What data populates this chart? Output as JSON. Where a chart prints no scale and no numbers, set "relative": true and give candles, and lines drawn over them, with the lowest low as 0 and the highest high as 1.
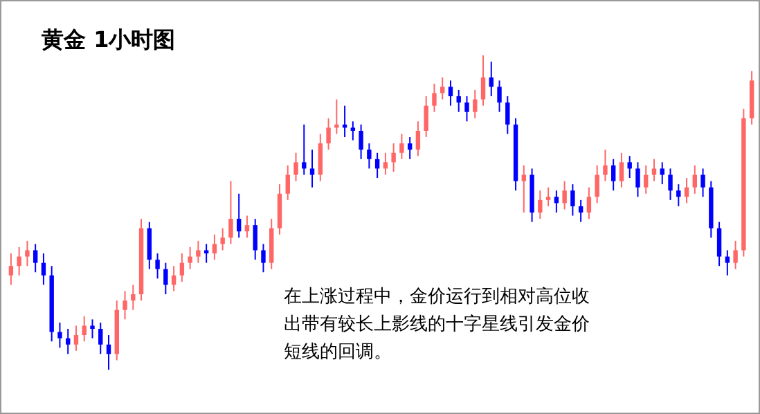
{
  "chart_data": {
    "type": "candlestick",
    "title": "黄金 1小时图",
    "relative": true,
    "annotations": [
      "在上涨过程中，金价运行到相对高位收",
      "出带有较长上影线的十字星线引发金价",
      "短线的回调。"
    ],
    "categories": [
      null,
      null,
      null,
      null,
      null,
      null,
      null,
      null,
      null,
      null,
      null,
      null,
      null,
      null,
      null,
      null,
      null,
      null,
      null,
      null,
      null,
      null,
      null,
      null,
      null,
      null,
      null,
      null,
      null,
      null,
      null,
      null,
      null,
      null,
      null,
      null,
      null,
      null,
      null,
      null,
      null,
      null,
      null,
      null,
      null,
      null,
      null,
      null,
      null,
      null,
      null,
      null,
      null,
      null,
      null,
      null,
      null,
      null,
      null,
      null,
      null,
      null,
      null,
      null,
      null,
      null,
      null,
      null,
      null,
      null,
      null,
      null,
      null,
      null,
      null,
      null,
      null,
      null,
      null,
      null,
      null,
      null,
      null,
      null,
      null,
      null,
      null,
      null,
      null,
      null,
      null,
      null
    ],
    "ohlc": [
      [
        0.3,
        0.37,
        0.27,
        0.33
      ],
      [
        0.33,
        0.39,
        0.3,
        0.36
      ],
      [
        0.36,
        0.41,
        0.33,
        0.38
      ],
      [
        0.38,
        0.4,
        0.31,
        0.34
      ],
      [
        0.34,
        0.37,
        0.27,
        0.3
      ],
      [
        0.3,
        0.33,
        0.09,
        0.12
      ],
      [
        0.12,
        0.15,
        0.07,
        0.1
      ],
      [
        0.1,
        0.13,
        0.05,
        0.08
      ],
      [
        0.08,
        0.14,
        0.06,
        0.11
      ],
      [
        0.11,
        0.17,
        0.09,
        0.14
      ],
      [
        0.14,
        0.16,
        0.1,
        0.13
      ],
      [
        0.13,
        0.15,
        0.05,
        0.08
      ],
      [
        0.08,
        0.11,
        0.0,
        0.05
      ],
      [
        0.05,
        0.22,
        0.03,
        0.19
      ],
      [
        0.19,
        0.25,
        0.16,
        0.22
      ],
      [
        0.22,
        0.27,
        0.19,
        0.24
      ],
      [
        0.24,
        0.48,
        0.22,
        0.45
      ],
      [
        0.45,
        0.47,
        0.32,
        0.35
      ],
      [
        0.35,
        0.37,
        0.29,
        0.32
      ],
      [
        0.32,
        0.34,
        0.24,
        0.27
      ],
      [
        0.27,
        0.33,
        0.25,
        0.3
      ],
      [
        0.3,
        0.37,
        0.28,
        0.34
      ],
      [
        0.34,
        0.39,
        0.32,
        0.36
      ],
      [
        0.36,
        0.41,
        0.34,
        0.38
      ],
      [
        0.38,
        0.4,
        0.34,
        0.37
      ],
      [
        0.37,
        0.43,
        0.35,
        0.4
      ],
      [
        0.4,
        0.45,
        0.38,
        0.42
      ],
      [
        0.42,
        0.6,
        0.4,
        0.48
      ],
      [
        0.48,
        0.56,
        0.42,
        0.44
      ],
      [
        0.44,
        0.49,
        0.42,
        0.46
      ],
      [
        0.46,
        0.48,
        0.35,
        0.38
      ],
      [
        0.38,
        0.4,
        0.31,
        0.34
      ],
      [
        0.34,
        0.48,
        0.32,
        0.45
      ],
      [
        0.45,
        0.59,
        0.43,
        0.56
      ],
      [
        0.56,
        0.65,
        0.54,
        0.62
      ],
      [
        0.62,
        0.69,
        0.6,
        0.66
      ],
      [
        0.66,
        0.78,
        0.62,
        0.64
      ],
      [
        0.64,
        0.7,
        0.58,
        0.62
      ],
      [
        0.62,
        0.75,
        0.6,
        0.72
      ],
      [
        0.72,
        0.8,
        0.7,
        0.77
      ],
      [
        0.77,
        0.86,
        0.75,
        0.78
      ],
      [
        0.78,
        0.84,
        0.74,
        0.77
      ],
      [
        0.77,
        0.79,
        0.73,
        0.76
      ],
      [
        0.76,
        0.78,
        0.67,
        0.7
      ],
      [
        0.7,
        0.72,
        0.64,
        0.67
      ],
      [
        0.67,
        0.69,
        0.61,
        0.64
      ],
      [
        0.64,
        0.69,
        0.62,
        0.66
      ],
      [
        0.66,
        0.72,
        0.63,
        0.69
      ],
      [
        0.69,
        0.75,
        0.67,
        0.72
      ],
      [
        0.72,
        0.74,
        0.67,
        0.7
      ],
      [
        0.7,
        0.79,
        0.68,
        0.76
      ],
      [
        0.76,
        0.87,
        0.74,
        0.84
      ],
      [
        0.84,
        0.91,
        0.82,
        0.88
      ],
      [
        0.88,
        0.93,
        0.86,
        0.9
      ],
      [
        0.9,
        0.92,
        0.84,
        0.87
      ],
      [
        0.87,
        0.89,
        0.82,
        0.85
      ],
      [
        0.85,
        0.87,
        0.79,
        0.82
      ],
      [
        0.82,
        0.89,
        0.8,
        0.86
      ],
      [
        0.86,
        1.0,
        0.84,
        0.93
      ],
      [
        0.93,
        0.98,
        0.87,
        0.9
      ],
      [
        0.9,
        0.92,
        0.82,
        0.85
      ],
      [
        0.85,
        0.87,
        0.75,
        0.78
      ],
      [
        0.78,
        0.8,
        0.57,
        0.6
      ],
      [
        0.6,
        0.65,
        0.5,
        0.62
      ],
      [
        0.62,
        0.64,
        0.47,
        0.5
      ],
      [
        0.5,
        0.57,
        0.48,
        0.54
      ],
      [
        0.54,
        0.58,
        0.52,
        0.55
      ],
      [
        0.55,
        0.57,
        0.5,
        0.53
      ],
      [
        0.53,
        0.6,
        0.51,
        0.57
      ],
      [
        0.57,
        0.59,
        0.49,
        0.52
      ],
      [
        0.52,
        0.54,
        0.47,
        0.5
      ],
      [
        0.5,
        0.58,
        0.48,
        0.55
      ],
      [
        0.55,
        0.65,
        0.53,
        0.62
      ],
      [
        0.62,
        0.7,
        0.6,
        0.65
      ],
      [
        0.65,
        0.67,
        0.57,
        0.6
      ],
      [
        0.6,
        0.69,
        0.58,
        0.66
      ],
      [
        0.66,
        0.68,
        0.61,
        0.64
      ],
      [
        0.64,
        0.66,
        0.55,
        0.58
      ],
      [
        0.58,
        0.65,
        0.56,
        0.62
      ],
      [
        0.62,
        0.67,
        0.6,
        0.64
      ],
      [
        0.64,
        0.66,
        0.59,
        0.62
      ],
      [
        0.62,
        0.64,
        0.54,
        0.57
      ],
      [
        0.57,
        0.59,
        0.52,
        0.55
      ],
      [
        0.55,
        0.61,
        0.53,
        0.58
      ],
      [
        0.58,
        0.65,
        0.56,
        0.62
      ],
      [
        0.62,
        0.64,
        0.55,
        0.58
      ],
      [
        0.58,
        0.6,
        0.42,
        0.45
      ],
      [
        0.45,
        0.47,
        0.33,
        0.36
      ],
      [
        0.36,
        0.38,
        0.3,
        0.34
      ],
      [
        0.34,
        0.41,
        0.32,
        0.38
      ],
      [
        0.38,
        0.83,
        0.36,
        0.8
      ],
      [
        0.8,
        0.95,
        0.78,
        0.92
      ]
    ],
    "colors": [
      "#ff6666",
      "#ff6666",
      "#ff6666",
      "#0000ff",
      "#0000ff",
      "#0000ff",
      "#0000ff",
      "#0000ff",
      "#ff6666",
      "#ff6666",
      "#0000ff",
      "#0000ff",
      "#0000ff",
      "#ff6666",
      "#ff6666",
      "#ff6666",
      "#ff6666",
      "#0000ff",
      "#0000ff",
      "#0000ff",
      "#ff6666",
      "#ff6666",
      "#ff6666",
      "#ff6666",
      "#0000ff",
      "#ff6666",
      "#ff6666",
      "#ff6666",
      "#0000ff",
      "#ff6666",
      "#0000ff",
      "#0000ff",
      "#ff6666",
      "#ff6666",
      "#ff6666",
      "#ff6666",
      "#0000ff",
      "#0000ff",
      "#ff6666",
      "#ff6666",
      "#ff6666",
      "#0000ff",
      "#0000ff",
      "#0000ff",
      "#0000ff",
      "#0000ff",
      "#ff6666",
      "#ff6666",
      "#ff6666",
      "#0000ff",
      "#ff6666",
      "#ff6666",
      "#ff6666",
      "#ff6666",
      "#0000ff",
      "#0000ff",
      "#0000ff",
      "#ff6666",
      "#ff6666",
      "#0000ff",
      "#0000ff",
      "#0000ff",
      "#0000ff",
      "#ff6666",
      "#0000ff",
      "#ff6666",
      "#ff6666",
      "#0000ff",
      "#ff6666",
      "#0000ff",
      "#0000ff",
      "#ff6666",
      "#ff6666",
      "#ff6666",
      "#0000ff",
      "#ff6666",
      "#0000ff",
      "#0000ff",
      "#ff6666",
      "#ff6666",
      "#0000ff",
      "#0000ff",
      "#0000ff",
      "#ff6666",
      "#ff6666",
      "#0000ff",
      "#0000ff",
      "#0000ff",
      "#0000ff",
      "#ff6666",
      "#ff6666",
      "#ff6666"
    ]
  }
}
